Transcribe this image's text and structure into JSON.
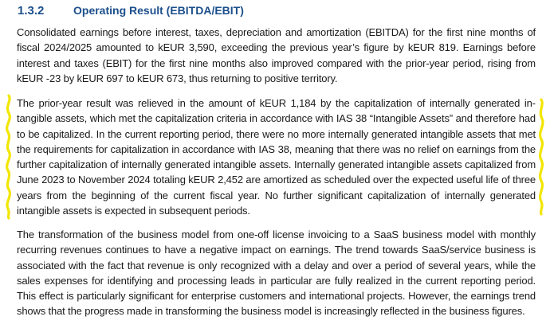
{
  "section": {
    "number": "1.3.2",
    "title": "Operating Result (EBITDA/EBIT)"
  },
  "paragraphs": [
    "Consolidated earnings before interest, taxes, depreciation and amortization (EBITDA) for the first nine months of fiscal 2024/2025 amounted to kEUR 3,590, exceeding the previous year’s figure by kEUR 819. Earnings before interest and taxes (EBIT) for the first nine months also improved compared with the prior-year period, rising from kEUR -23 by kEUR 697 to kEUR 673, thus returning to positive territory.",
    "The prior-year result was relieved in the amount of kEUR 1,184 by the capitalization of internally generated in­tangible assets, which met the capitalization criteria in accordance with IAS 38 “Intangible Assets” and there­fore had to be capitalized. In the current reporting period, there were no more internally generated intangible assets that met the requirements for capitalization in accordance with IAS 38, meaning that there was no relief on earnings from the further capitalization of internally generated intangible assets. Internally generated in­tangible assets capitalized from June 2023 to November 2024 totaling kEUR 2,452 are amortized as scheduled over the expected useful life of three years from the beginning of the current fiscal year. No further significant capitalization of internally generated intangible assets is expected in subsequent periods.",
    "The transformation of the business model from one-off license invoicing to a SaaS business model with monthly recurring revenues continues to have a negative impact on earnings. The trend towards SaaS/service business is associated with the fact that revenue is only recognized with a delay and over a period of several years, while the sales expenses for identifying and processing leads in particular are fully realized in the current reporting period. This effect is particularly significant for enterprise customers and international projects. However, the earnings trend shows that the progress made in transforming the business model is increasingly reflected in the business figures."
  ],
  "colors": {
    "heading": "#1c4f8c",
    "text": "#1a1a1a",
    "highlight_marker": "#f2e600"
  }
}
